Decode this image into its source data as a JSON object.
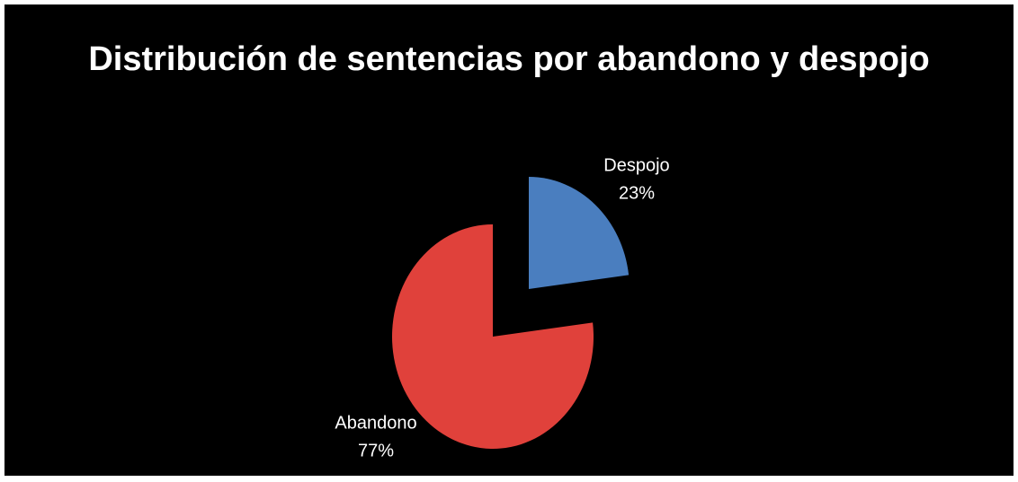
{
  "chart_data": {
    "type": "pie",
    "title": "Distribución de sentencias por abandono y despojo",
    "categories": [
      "Despojo",
      "Abandono"
    ],
    "values": [
      23,
      77
    ],
    "value_labels": [
      "23%",
      "77%"
    ],
    "colors": [
      "#4a7ebf",
      "#e0413b"
    ]
  }
}
